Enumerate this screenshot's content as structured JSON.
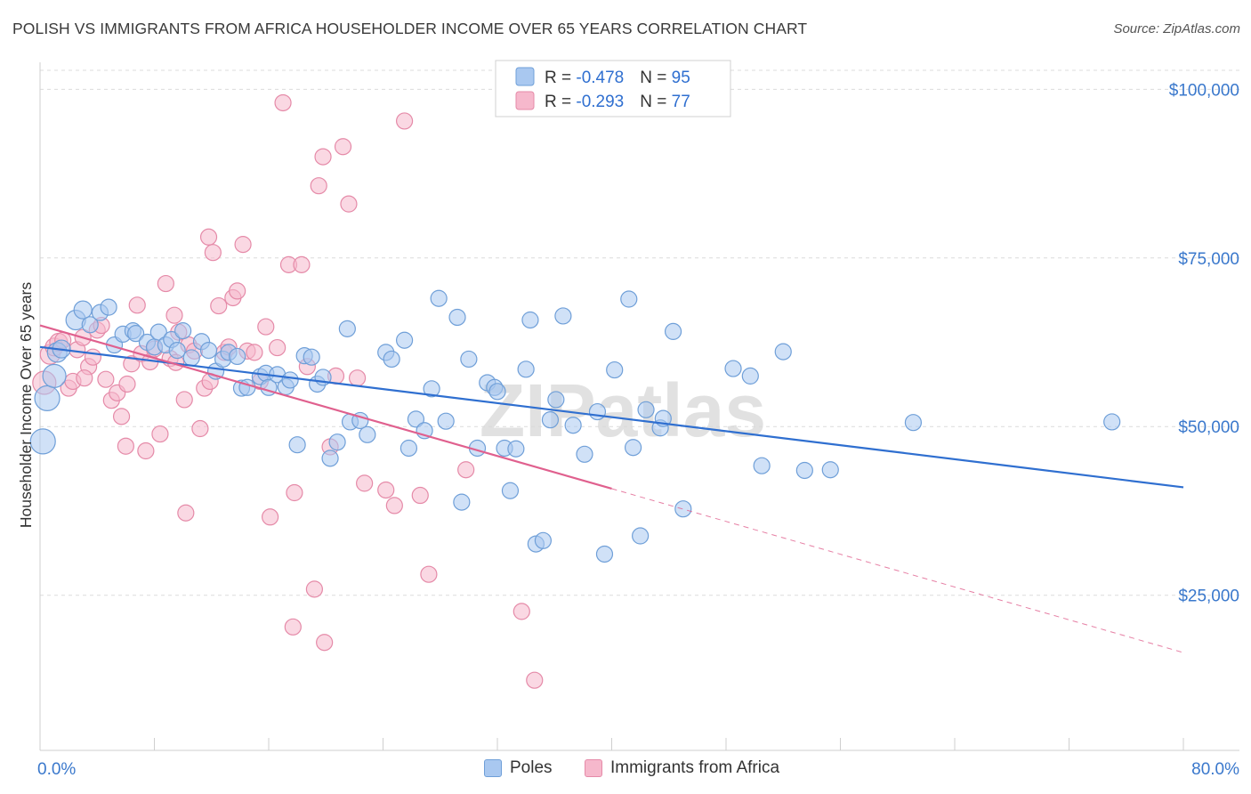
{
  "title": "POLISH VS IMMIGRANTS FROM AFRICA HOUSEHOLDER INCOME OVER 65 YEARS CORRELATION CHART",
  "source": "Source: ZipAtlas.com",
  "watermark": "ZIPatlas",
  "colors": {
    "poles_fill": "#a9c8f0",
    "poles_stroke": "#6f9fd8",
    "poles_line": "#2f6fd0",
    "africa_fill": "#f6b8cc",
    "africa_stroke": "#e58aa8",
    "africa_line": "#e0608e",
    "axis_label_blue": "#3a78cc",
    "grid": "#dcdcdc"
  },
  "legend_top": {
    "rows": [
      {
        "r_label": "R = ",
        "r_value": "-0.478",
        "n_label": "N = ",
        "n_value": "95"
      },
      {
        "r_label": "R = ",
        "r_value": "-0.293",
        "n_label": "N = ",
        "n_value": "77"
      }
    ]
  },
  "legend_bottom": {
    "items": [
      {
        "label": "Poles"
      },
      {
        "label": "Immigrants from Africa"
      }
    ]
  },
  "chart_data": {
    "type": "scatter",
    "title": "POLISH VS IMMIGRANTS FROM AFRICA HOUSEHOLDER INCOME OVER 65 YEARS CORRELATION CHART",
    "xlabel": "",
    "ylabel": "Householder Income Over 65 years",
    "xlim": [
      0,
      80
    ],
    "ylim": [
      2000,
      104000
    ],
    "x_tick_labels": [
      "0.0%",
      "80.0%"
    ],
    "y_ticks": [
      25000,
      50000,
      75000,
      100000
    ],
    "y_tick_labels": [
      "$25,000",
      "$50,000",
      "$75,000",
      "$100,000"
    ],
    "grid": true,
    "legend_position": "top-center",
    "series": [
      {
        "name": "Poles",
        "r": -0.478,
        "n": 95,
        "trend": {
          "x0": 0,
          "y0": 61800,
          "x1": 80,
          "y1": 41000
        },
        "points": [
          [
            0.2,
            47800,
            14
          ],
          [
            0.5,
            54200,
            14
          ],
          [
            1.0,
            57500,
            13
          ],
          [
            1.2,
            61000,
            11
          ],
          [
            1.5,
            61500,
            10
          ],
          [
            2.5,
            65800,
            11
          ],
          [
            3.0,
            67300,
            10
          ],
          [
            3.5,
            65100,
            9
          ],
          [
            4.2,
            66900,
            9
          ],
          [
            4.8,
            67700,
            9
          ],
          [
            5.2,
            62100,
            9
          ],
          [
            5.8,
            63700,
            9
          ],
          [
            6.5,
            64200,
            9
          ],
          [
            6.7,
            63800,
            9
          ],
          [
            7.5,
            62500,
            9
          ],
          [
            8.0,
            61800,
            9
          ],
          [
            8.3,
            64000,
            9
          ],
          [
            8.8,
            62100,
            9
          ],
          [
            9.2,
            62900,
            9
          ],
          [
            9.6,
            61300,
            9
          ],
          [
            10.0,
            64200,
            9
          ],
          [
            10.6,
            60200,
            9
          ],
          [
            11.3,
            62600,
            9
          ],
          [
            11.8,
            61300,
            9
          ],
          [
            12.3,
            58200,
            9
          ],
          [
            12.8,
            60000,
            9
          ],
          [
            13.2,
            61000,
            9
          ],
          [
            13.8,
            60400,
            9
          ],
          [
            14.1,
            55700,
            9
          ],
          [
            14.5,
            55800,
            9
          ],
          [
            15.4,
            57400,
            9
          ],
          [
            15.8,
            57900,
            9
          ],
          [
            16.0,
            55800,
            9
          ],
          [
            16.6,
            57700,
            9
          ],
          [
            17.2,
            55900,
            9
          ],
          [
            17.5,
            56900,
            9
          ],
          [
            18.5,
            60500,
            9
          ],
          [
            19.0,
            60300,
            9
          ],
          [
            18.0,
            47300,
            9
          ],
          [
            19.4,
            56300,
            9
          ],
          [
            19.8,
            57300,
            9
          ],
          [
            20.3,
            45300,
            9
          ],
          [
            20.8,
            47700,
            9
          ],
          [
            21.5,
            64500,
            9
          ],
          [
            21.7,
            50700,
            9
          ],
          [
            22.4,
            50900,
            9
          ],
          [
            22.9,
            48800,
            9
          ],
          [
            24.2,
            61000,
            9
          ],
          [
            24.6,
            60000,
            9
          ],
          [
            25.5,
            62800,
            9
          ],
          [
            25.8,
            46800,
            9
          ],
          [
            26.3,
            51100,
            9
          ],
          [
            26.9,
            49400,
            9
          ],
          [
            27.4,
            55600,
            9
          ],
          [
            27.9,
            69000,
            9
          ],
          [
            28.4,
            50800,
            9
          ],
          [
            29.2,
            66200,
            9
          ],
          [
            29.5,
            38800,
            9
          ],
          [
            30.0,
            60000,
            9
          ],
          [
            30.6,
            46800,
            9
          ],
          [
            31.3,
            56500,
            9
          ],
          [
            31.8,
            55800,
            9
          ],
          [
            32.0,
            55200,
            9
          ],
          [
            32.5,
            46800,
            9
          ],
          [
            32.9,
            40500,
            9
          ],
          [
            33.3,
            46700,
            9
          ],
          [
            34.0,
            58500,
            9
          ],
          [
            34.3,
            65800,
            9
          ],
          [
            34.7,
            32600,
            9
          ],
          [
            35.2,
            33100,
            9
          ],
          [
            35.7,
            51000,
            9
          ],
          [
            36.1,
            54000,
            9
          ],
          [
            36.6,
            66400,
            9
          ],
          [
            37.3,
            50200,
            9
          ],
          [
            38.1,
            45900,
            9
          ],
          [
            39.0,
            52200,
            9
          ],
          [
            39.5,
            31100,
            9
          ],
          [
            40.2,
            58400,
            9
          ],
          [
            41.2,
            68900,
            9
          ],
          [
            41.5,
            46900,
            9
          ],
          [
            42.0,
            33800,
            9
          ],
          [
            42.4,
            52500,
            9
          ],
          [
            43.4,
            49800,
            9
          ],
          [
            43.6,
            51200,
            9
          ],
          [
            44.3,
            64100,
            9
          ],
          [
            45.0,
            37800,
            9
          ],
          [
            48.5,
            58600,
            9
          ],
          [
            49.7,
            57500,
            9
          ],
          [
            50.5,
            44200,
            9
          ],
          [
            52.0,
            61100,
            9
          ],
          [
            53.5,
            43500,
            9
          ],
          [
            55.3,
            43600,
            9
          ],
          [
            61.1,
            50600,
            9
          ],
          [
            75.0,
            50700,
            9
          ]
        ]
      },
      {
        "name": "Immigrants from Africa",
        "r": -0.293,
        "n": 77,
        "trend": {
          "x0": 0,
          "y0": 65000,
          "x1": 40,
          "y1": 40800
        },
        "trend_dashed": {
          "x0": 40,
          "y0": 40800,
          "x1": 80,
          "y1": 16500
        },
        "points": [
          [
            0.3,
            56500,
            13
          ],
          [
            0.7,
            60700,
            11
          ],
          [
            1.0,
            61800,
            10
          ],
          [
            1.3,
            62500,
            10
          ],
          [
            1.6,
            62800,
            9
          ],
          [
            2.0,
            55700,
            9
          ],
          [
            2.3,
            56700,
            9
          ],
          [
            2.6,
            61400,
            9
          ],
          [
            3.0,
            63200,
            9
          ],
          [
            3.4,
            58900,
            9
          ],
          [
            3.7,
            60300,
            9
          ],
          [
            4.0,
            64300,
            9
          ],
          [
            4.3,
            65000,
            9
          ],
          [
            4.6,
            57000,
            9
          ],
          [
            5.0,
            53900,
            9
          ],
          [
            5.4,
            55000,
            9
          ],
          [
            5.7,
            51500,
            9
          ],
          [
            6.0,
            47100,
            9
          ],
          [
            6.4,
            59300,
            9
          ],
          [
            6.8,
            68000,
            9
          ],
          [
            7.1,
            60800,
            9
          ],
          [
            7.4,
            46400,
            9
          ],
          [
            7.7,
            59600,
            9
          ],
          [
            8.0,
            61500,
            9
          ],
          [
            8.4,
            48900,
            9
          ],
          [
            8.8,
            71200,
            9
          ],
          [
            9.1,
            60100,
            9
          ],
          [
            9.4,
            66500,
            9
          ],
          [
            9.7,
            64000,
            9
          ],
          [
            10.1,
            54000,
            9
          ],
          [
            10.4,
            62100,
            9
          ],
          [
            10.8,
            61200,
            9
          ],
          [
            10.2,
            37200,
            9
          ],
          [
            11.2,
            49700,
            9
          ],
          [
            11.5,
            55700,
            9
          ],
          [
            11.8,
            78100,
            9
          ],
          [
            12.1,
            75800,
            9
          ],
          [
            12.5,
            67900,
            9
          ],
          [
            12.9,
            61000,
            9
          ],
          [
            13.2,
            61800,
            9
          ],
          [
            13.5,
            69100,
            9
          ],
          [
            13.8,
            70100,
            9
          ],
          [
            14.2,
            77000,
            9
          ],
          [
            14.5,
            61200,
            9
          ],
          [
            15.0,
            61000,
            9
          ],
          [
            15.4,
            56700,
            9
          ],
          [
            15.8,
            64800,
            9
          ],
          [
            16.1,
            36600,
            9
          ],
          [
            16.6,
            61700,
            9
          ],
          [
            17.0,
            98000,
            9
          ],
          [
            17.4,
            74000,
            9
          ],
          [
            17.7,
            20300,
            9
          ],
          [
            17.8,
            40200,
            9
          ],
          [
            18.3,
            74000,
            9
          ],
          [
            18.7,
            58900,
            9
          ],
          [
            19.2,
            25900,
            9
          ],
          [
            19.5,
            85700,
            9
          ],
          [
            19.8,
            90000,
            9
          ],
          [
            19.9,
            18000,
            9
          ],
          [
            20.3,
            47000,
            9
          ],
          [
            20.7,
            57500,
            9
          ],
          [
            21.2,
            91500,
            9
          ],
          [
            21.6,
            83000,
            9
          ],
          [
            22.2,
            57200,
            9
          ],
          [
            22.7,
            41600,
            9
          ],
          [
            24.2,
            40600,
            9
          ],
          [
            24.8,
            38300,
            9
          ],
          [
            25.5,
            95300,
            9
          ],
          [
            26.6,
            39800,
            9
          ],
          [
            27.2,
            28100,
            9
          ],
          [
            29.8,
            43600,
            9
          ],
          [
            33.7,
            22600,
            9
          ],
          [
            34.6,
            12400,
            9
          ],
          [
            11.9,
            56700,
            9
          ],
          [
            9.5,
            59500,
            9
          ],
          [
            6.1,
            56300,
            9
          ],
          [
            3.1,
            57200,
            9
          ]
        ]
      }
    ]
  }
}
